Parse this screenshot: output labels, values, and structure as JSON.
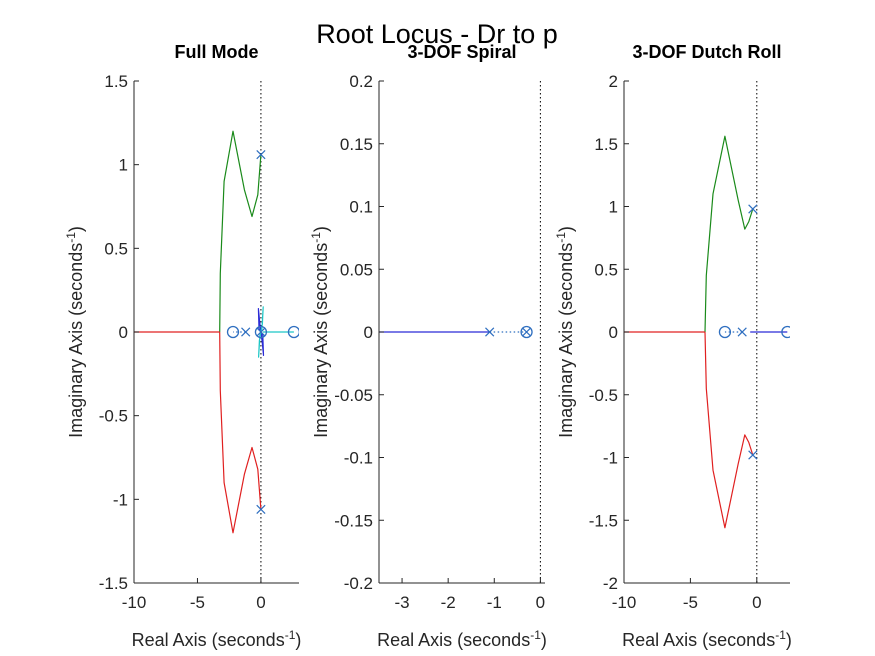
{
  "figure": {
    "title": "Root Locus - Dr to p"
  },
  "colors": {
    "green": "#1a8a1a",
    "red": "#e02020",
    "blue": "#2b2bd6",
    "cyan": "#1cc6c6",
    "marker": "#2f6fc0",
    "axis": "#262626"
  },
  "chart_data": [
    {
      "type": "line",
      "title": "Full Mode",
      "xlabel": "Real Axis (seconds",
      "ylabel": "Imaginary Axis (seconds",
      "label_sup": "-1",
      "label_close": ")",
      "xlim": [
        -10,
        3
      ],
      "ylim": [
        -1.5,
        1.5
      ],
      "xticks": [
        -10,
        -5,
        0
      ],
      "xtick_labels": [
        "-10",
        "-5",
        "0"
      ],
      "yticks": [
        -1.5,
        -1,
        -0.5,
        0,
        0.5,
        1,
        1.5
      ],
      "ytick_labels": [
        "-1.5",
        "-1",
        "-0.5",
        "0",
        "0.5",
        "1",
        "1.5"
      ],
      "series": [
        {
          "color_key": "green",
          "x": [
            0,
            -0.25,
            -0.7,
            -1.3,
            -2.2,
            -2.9,
            -3.2,
            -3.25
          ],
          "y": [
            1.06,
            0.82,
            0.69,
            0.85,
            1.2,
            0.9,
            0.35,
            0.0
          ]
        },
        {
          "color_key": "red",
          "x": [
            0,
            -0.25,
            -0.7,
            -1.3,
            -2.2,
            -2.9,
            -3.2,
            -3.25
          ],
          "y": [
            -1.06,
            -0.82,
            -0.69,
            -0.85,
            -1.2,
            -0.9,
            -0.35,
            0.0
          ]
        },
        {
          "color_key": "red",
          "x": [
            -3.25,
            -10
          ],
          "y": [
            0,
            0
          ]
        },
        {
          "color_key": "blue",
          "x": [
            0,
            -0.1,
            -0.2,
            -0.15,
            0,
            0.15,
            0.2,
            0.1,
            0
          ],
          "y": [
            0.0,
            0.06,
            0.14,
            0.02,
            0.0,
            -0.02,
            -0.14,
            -0.06,
            0.0
          ]
        },
        {
          "color_key": "cyan",
          "x": [
            0,
            -0.12,
            -0.18,
            -0.08,
            0,
            0.08,
            0.18,
            0.12,
            0
          ],
          "y": [
            0.0,
            -0.05,
            -0.15,
            -0.02,
            0.0,
            0.02,
            0.15,
            0.05,
            0.0
          ]
        },
        {
          "color_key": "cyan",
          "x": [
            0.15,
            2.6
          ],
          "y": [
            0,
            0
          ]
        }
      ],
      "dotted": [
        {
          "x": [
            -1.2,
            -2.2
          ],
          "y": [
            0,
            0
          ]
        }
      ],
      "poles": [
        {
          "x": 0,
          "y": 1.06
        },
        {
          "x": 0,
          "y": -1.06
        },
        {
          "x": -1.2,
          "y": 0
        },
        {
          "x": 0,
          "y": 0
        }
      ],
      "zeros": [
        {
          "x": -2.2,
          "y": 0
        },
        {
          "x": 2.6,
          "y": 0
        },
        {
          "x": 0,
          "y": 0
        }
      ]
    },
    {
      "type": "line",
      "title": "3-DOF Spiral",
      "xlabel": "Real Axis (seconds",
      "ylabel": "Imaginary Axis (seconds",
      "label_sup": "-1",
      "label_close": ")",
      "xlim": [
        -3.5,
        0.1
      ],
      "ylim": [
        -0.2,
        0.2
      ],
      "xticks": [
        -3,
        -2,
        -1,
        0
      ],
      "xtick_labels": [
        "-3",
        "-2",
        "-1",
        "0"
      ],
      "yticks": [
        -0.2,
        -0.15,
        -0.1,
        -0.05,
        0,
        0.05,
        0.1,
        0.15,
        0.2
      ],
      "ytick_labels": [
        "-0.2",
        "-0.15",
        "-0.1",
        "-0.05",
        "0",
        "0.05",
        "0.1",
        "0.15",
        "0.2"
      ],
      "series": [
        {
          "color_key": "blue",
          "x": [
            -1.1,
            -3.5
          ],
          "y": [
            0,
            0
          ]
        }
      ],
      "dotted": [
        {
          "x": [
            -1.1,
            -0.3
          ],
          "y": [
            0,
            0
          ]
        }
      ],
      "poles": [
        {
          "x": -1.1,
          "y": 0
        },
        {
          "x": -0.3,
          "y": 0
        }
      ],
      "zeros": [
        {
          "x": -0.3,
          "y": 0
        }
      ]
    },
    {
      "type": "line",
      "title": "3-DOF Dutch Roll",
      "xlabel": "Real Axis (seconds",
      "ylabel": "Imaginary Axis (seconds",
      "label_sup": "-1",
      "label_close": ")",
      "xlim": [
        -10,
        2.5
      ],
      "ylim": [
        -2,
        2
      ],
      "xticks": [
        -10,
        -5,
        0
      ],
      "xtick_labels": [
        "-10",
        "-5",
        "0"
      ],
      "yticks": [
        -2,
        -1.5,
        -1,
        -0.5,
        0,
        0.5,
        1,
        1.5,
        2
      ],
      "ytick_labels": [
        "-2",
        "-1.5",
        "-1",
        "-0.5",
        "0",
        "0.5",
        "1",
        "1.5",
        "2"
      ],
      "series": [
        {
          "color_key": "green",
          "x": [
            -0.3,
            -0.6,
            -0.9,
            -1.4,
            -2.4,
            -3.3,
            -3.8,
            -3.9
          ],
          "y": [
            0.98,
            0.88,
            0.82,
            1.05,
            1.56,
            1.1,
            0.45,
            0.0
          ]
        },
        {
          "color_key": "red",
          "x": [
            -0.3,
            -0.6,
            -0.9,
            -1.4,
            -2.4,
            -3.3,
            -3.8,
            -3.9
          ],
          "y": [
            -0.98,
            -0.88,
            -0.82,
            -1.05,
            -1.56,
            -1.1,
            -0.45,
            0.0
          ]
        },
        {
          "color_key": "red",
          "x": [
            -3.9,
            -10
          ],
          "y": [
            0,
            0
          ]
        },
        {
          "color_key": "blue",
          "x": [
            -0.5,
            2.3
          ],
          "y": [
            0,
            0
          ]
        }
      ],
      "dotted": [
        {
          "x": [
            -1.1,
            -2.4
          ],
          "y": [
            0,
            0
          ]
        }
      ],
      "poles": [
        {
          "x": -0.3,
          "y": 0.98
        },
        {
          "x": -0.3,
          "y": -0.98
        },
        {
          "x": -1.1,
          "y": 0
        }
      ],
      "zeros": [
        {
          "x": -2.4,
          "y": 0
        },
        {
          "x": 2.3,
          "y": 0
        }
      ]
    }
  ]
}
